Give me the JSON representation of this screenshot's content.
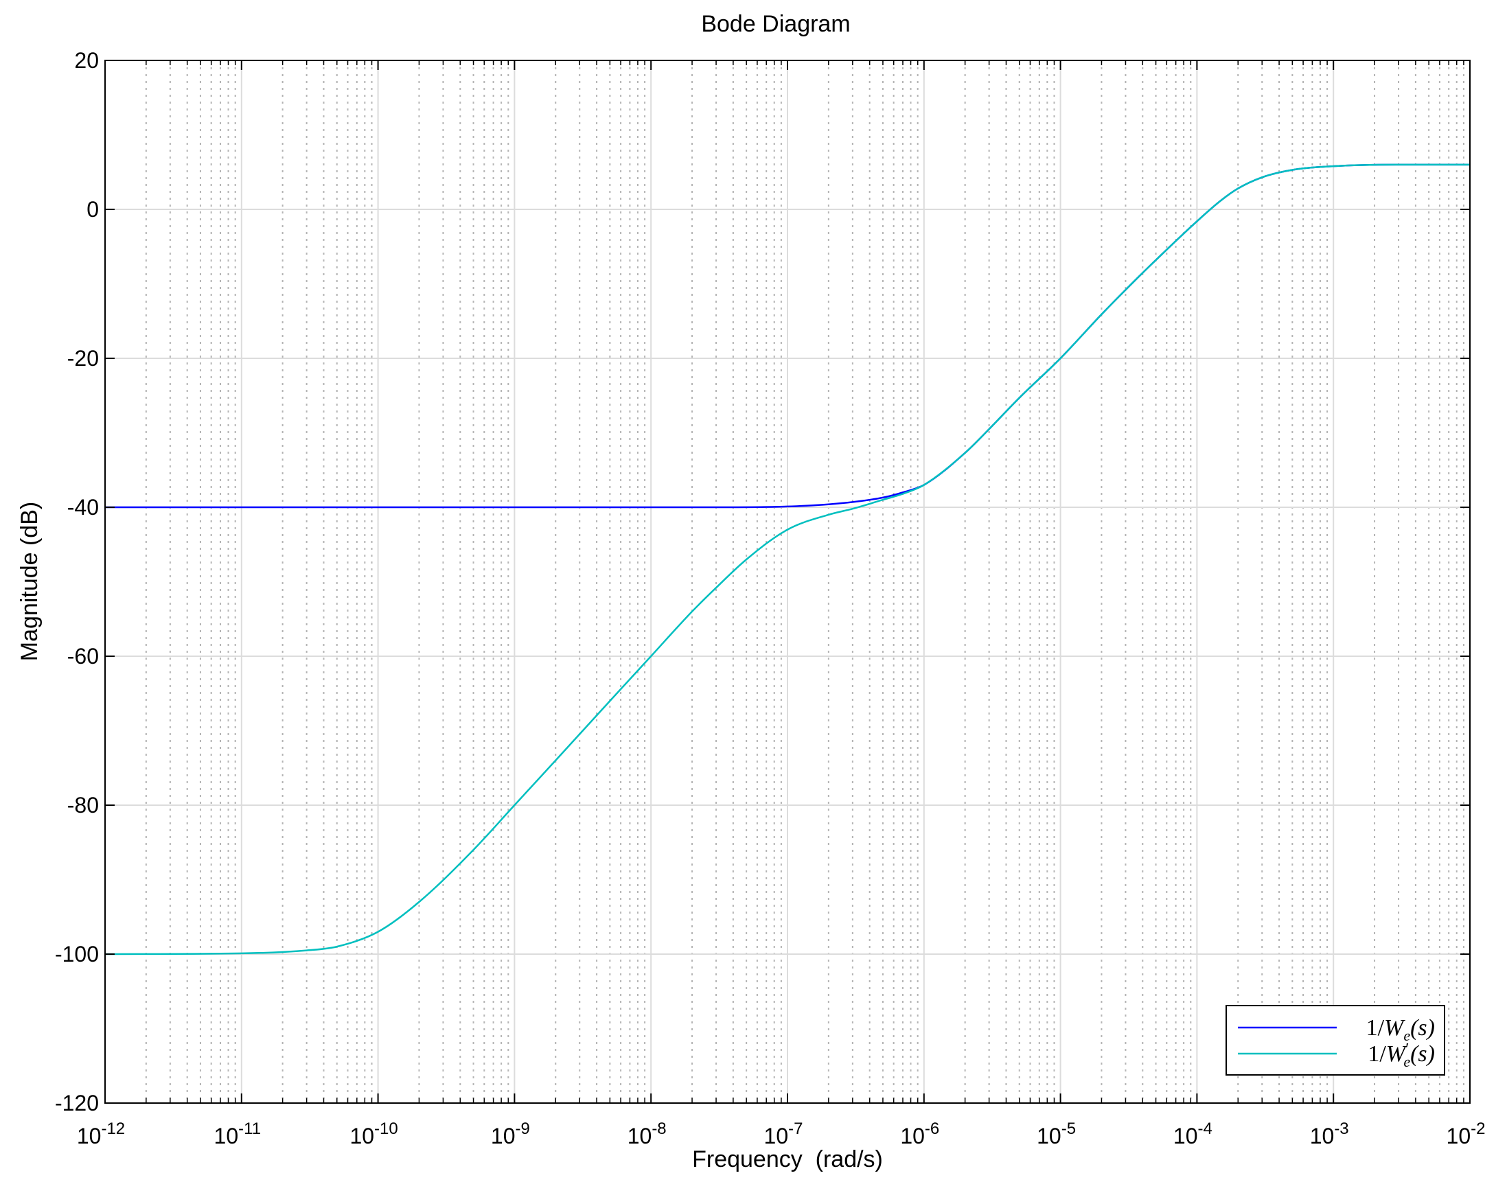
{
  "chart_data": {
    "type": "line",
    "title": "Bode Diagram",
    "xlabel": "Frequency  (rad/s)",
    "ylabel": "Magnitude (dB)",
    "xscale": "log",
    "xlim": [
      1e-12,
      0.01
    ],
    "ylim": [
      -120,
      20
    ],
    "grid": true,
    "legend_position": "bottom-right",
    "x_ticks": [
      {
        "value": 1e-12,
        "base": "10",
        "exp": "-12"
      },
      {
        "value": 1e-11,
        "base": "10",
        "exp": "-11"
      },
      {
        "value": 1e-10,
        "base": "10",
        "exp": "-10"
      },
      {
        "value": 1e-09,
        "base": "10",
        "exp": "-9"
      },
      {
        "value": 1e-08,
        "base": "10",
        "exp": "-8"
      },
      {
        "value": 1e-07,
        "base": "10",
        "exp": "-7"
      },
      {
        "value": 1e-06,
        "base": "10",
        "exp": "-6"
      },
      {
        "value": 1e-05,
        "base": "10",
        "exp": "-5"
      },
      {
        "value": 0.0001,
        "base": "10",
        "exp": "-4"
      },
      {
        "value": 0.001,
        "base": "10",
        "exp": "-3"
      },
      {
        "value": 0.01,
        "base": "10",
        "exp": "-2"
      }
    ],
    "y_ticks": [
      {
        "value": 20,
        "label": "20"
      },
      {
        "value": 0,
        "label": "0"
      },
      {
        "value": -20,
        "label": "-20"
      },
      {
        "value": -40,
        "label": "-40"
      },
      {
        "value": -60,
        "label": "-60"
      },
      {
        "value": -80,
        "label": "-80"
      },
      {
        "value": -100,
        "label": "-100"
      },
      {
        "value": -120,
        "label": "-120"
      }
    ],
    "series": [
      {
        "name": "1/We(s)",
        "legend_parts": {
          "pre": "1/",
          "main": "W",
          "prime": "",
          "sub": "e",
          "post": "(s)"
        },
        "color": "#0000ff",
        "x": [
          1e-12,
          1e-11,
          1e-10,
          1e-09,
          1e-08,
          3e-08,
          1e-07,
          2e-07,
          3e-07,
          5e-07,
          7e-07,
          1e-06,
          2e-06,
          3e-06,
          5e-06,
          1e-05,
          2e-05,
          3e-05,
          5e-05,
          0.0001,
          0.00015,
          0.0002,
          0.0003,
          0.0005,
          0.001,
          0.003,
          0.01
        ],
        "y": [
          -40,
          -40,
          -40,
          -40,
          -40,
          -40,
          -39.9,
          -39.6,
          -39.3,
          -38.7,
          -38.0,
          -37.0,
          -32.7,
          -29.5,
          -25.3,
          -20.0,
          -14.1,
          -10.8,
          -6.8,
          -1.6,
          1.2,
          2.8,
          4.3,
          5.3,
          5.8,
          6.0,
          6.0
        ]
      },
      {
        "name": "1/W'e(s)",
        "legend_parts": {
          "pre": "1/",
          "main": "W",
          "prime": "′",
          "sub": "e",
          "post": "(s)"
        },
        "color": "#00bfbf",
        "x": [
          1e-12,
          1e-11,
          3e-11,
          5e-11,
          1e-10,
          2e-10,
          5e-10,
          1e-09,
          2e-09,
          5e-09,
          1e-08,
          2e-08,
          3e-08,
          5e-08,
          1e-07,
          2e-07,
          3e-07,
          5e-07,
          7e-07,
          1e-06,
          2e-06,
          3e-06,
          5e-06,
          1e-05,
          2e-05,
          3e-05,
          5e-05,
          0.0001,
          0.00015,
          0.0002,
          0.0003,
          0.0005,
          0.001,
          0.003,
          0.01
        ],
        "y": [
          -100,
          -99.9,
          -99.5,
          -99.0,
          -97.0,
          -93.0,
          -86.0,
          -80.0,
          -74.0,
          -66.0,
          -60.0,
          -54.0,
          -50.8,
          -47.0,
          -43.0,
          -41.0,
          -40.2,
          -39.0,
          -38.2,
          -37.0,
          -32.7,
          -29.5,
          -25.3,
          -20.0,
          -14.1,
          -10.8,
          -6.8,
          -1.6,
          1.2,
          2.8,
          4.3,
          5.3,
          5.8,
          6.0,
          6.0
        ]
      }
    ]
  }
}
